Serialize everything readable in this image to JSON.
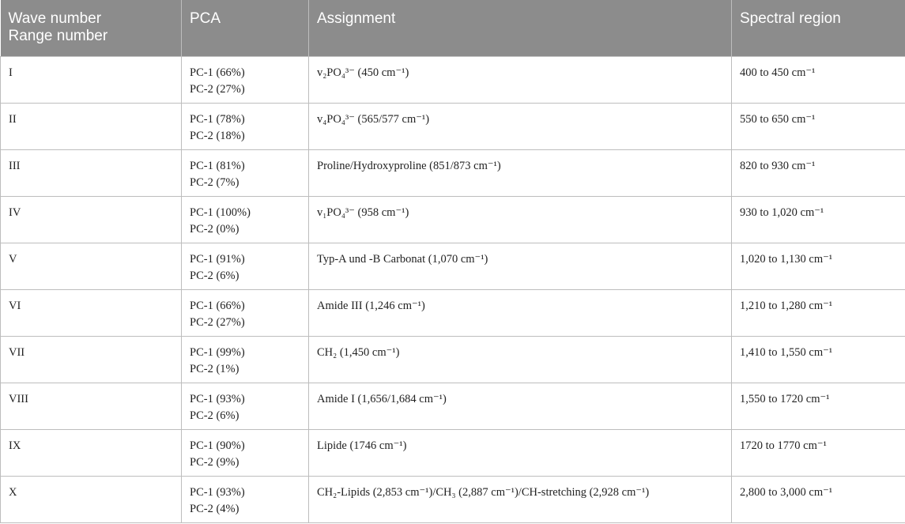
{
  "header": {
    "col1_line1": "Wave number",
    "col1_line2": "Range number",
    "col2": "PCA",
    "col3": "Assignment",
    "col4": "Spectral region"
  },
  "rows": [
    {
      "range": "I",
      "pc1": "PC-1 (66%)",
      "pc2": "PC-2 (27%)",
      "assignment": "v₂PO₄³⁻ (450 cm⁻¹)",
      "region": "400 to 450 cm⁻¹"
    },
    {
      "range": "II",
      "pc1": "PC-1 (78%)",
      "pc2": "PC-2 (18%)",
      "assignment": "v₄PO₄³⁻ (565/577 cm⁻¹)",
      "region": "550 to 650 cm⁻¹"
    },
    {
      "range": "III",
      "pc1": "PC-1 (81%)",
      "pc2": "PC-2 (7%)",
      "assignment": "Proline/Hydroxyproline (851/873 cm⁻¹)",
      "region": "820 to 930 cm⁻¹"
    },
    {
      "range": "IV",
      "pc1": "PC-1 (100%)",
      "pc2": "PC-2 (0%)",
      "assignment": "v₁PO₄³⁻ (958 cm⁻¹)",
      "region": "930 to 1,020 cm⁻¹"
    },
    {
      "range": "V",
      "pc1": "PC-1 (91%)",
      "pc2": "PC-2 (6%)",
      "assignment": "Typ-A und -B Carbonat (1,070 cm⁻¹)",
      "region": "1,020 to 1,130 cm⁻¹"
    },
    {
      "range": "VI",
      "pc1": "PC-1 (66%)",
      "pc2": "PC-2 (27%)",
      "assignment": "Amide III (1,246 cm⁻¹)",
      "region": "1,210 to 1,280 cm⁻¹"
    },
    {
      "range": "VII",
      "pc1": "PC-1 (99%)",
      "pc2": "PC-2 (1%)",
      "assignment": "CH₂ (1,450 cm⁻¹)",
      "region": "1,410 to 1,550 cm⁻¹"
    },
    {
      "range": "VIII",
      "pc1": "PC-1 (93%)",
      "pc2": "PC-2 (6%)",
      "assignment": "Amide I (1,656/1,684 cm⁻¹)",
      "region": "1,550 to 1720 cm⁻¹"
    },
    {
      "range": "IX",
      "pc1": "PC-1 (90%)",
      "pc2": "PC-2 (9%)",
      "assignment": "Lipide (1746 cm⁻¹)",
      "region": "1720 to 1770 cm⁻¹"
    },
    {
      "range": "X",
      "pc1": "PC-1 (93%)",
      "pc2": "PC-2 (4%)",
      "assignment": "CH₂-Lipids (2,853 cm⁻¹)/CH₃ (2,887 cm⁻¹)/CH-stretching (2,928 cm⁻¹)",
      "region": "2,800 to 3,000 cm⁻¹"
    }
  ]
}
